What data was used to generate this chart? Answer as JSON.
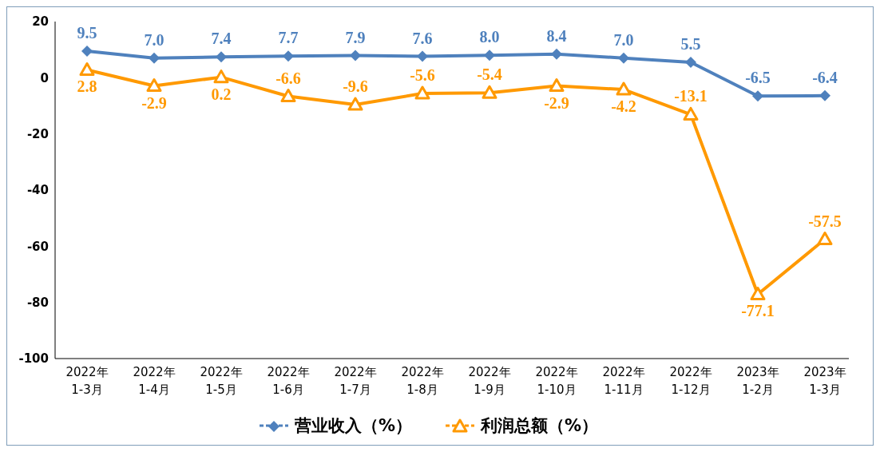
{
  "chart_data": {
    "type": "line",
    "categories": [
      "2022年\n1-3月",
      "2022年\n1-4月",
      "2022年\n1-5月",
      "2022年\n1-6月",
      "2022年\n1-7月",
      "2022年\n1-8月",
      "2022年\n1-9月",
      "2022年\n1-10月",
      "2022年\n1-11月",
      "2022年\n1-12月",
      "2023年\n1-2月",
      "2023年\n1-3月"
    ],
    "series": [
      {
        "name": "营业收入（%）",
        "color": "#4f81bd",
        "marker": "diamond",
        "values": [
          9.5,
          7.0,
          7.4,
          7.7,
          7.9,
          7.6,
          8.0,
          8.4,
          7.0,
          5.5,
          -6.5,
          -6.4
        ],
        "value_labels": [
          "9.5",
          "7.0",
          "7.4",
          "7.7",
          "7.9",
          "7.6",
          "8.0",
          "8.4",
          "7.0",
          "5.5",
          "-6.5",
          "-6.4"
        ]
      },
      {
        "name": "利润总额（%）",
        "color": "#ff9900",
        "marker": "triangle",
        "values": [
          2.8,
          -2.9,
          0.2,
          -6.6,
          -9.6,
          -5.6,
          -5.4,
          -2.9,
          -4.2,
          -13.1,
          -77.1,
          -57.5
        ],
        "value_labels": [
          "2.8",
          "-2.9",
          "0.2",
          "-6.6",
          "-9.6",
          "-5.6",
          "-5.4",
          "-2.9",
          "-4.2",
          "-13.1",
          "-77.1",
          "-57.5"
        ]
      }
    ],
    "ylim": [
      -100,
      20
    ],
    "yticks": [
      -100,
      -80,
      -60,
      -40,
      -20,
      0,
      20
    ],
    "legend": "bottom"
  }
}
